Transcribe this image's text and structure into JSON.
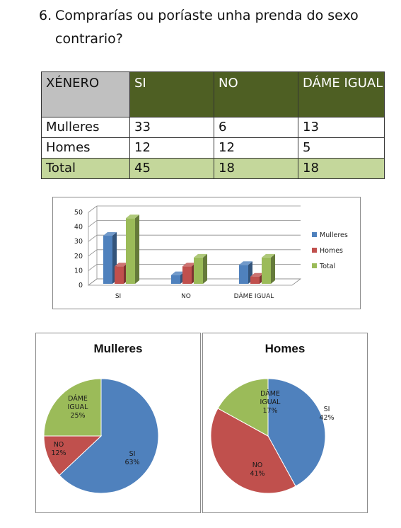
{
  "question": {
    "number": "6.",
    "text": "Comprarías ou poríaste unha prenda do sexo contrario?"
  },
  "table": {
    "headers": [
      "XÉNERO",
      "SI",
      "NO",
      "DÁME IGUAL"
    ],
    "rows": [
      [
        "Mulleres",
        "33",
        "6",
        "13"
      ],
      [
        "Homes",
        "12",
        "12",
        "5"
      ],
      [
        "Total",
        "45",
        "18",
        "18"
      ]
    ]
  },
  "colors": {
    "header_bg": "#4e5f23",
    "total_bg": "#c4d79b",
    "mulleres": "#4f81bd",
    "homes": "#c0504d",
    "total": "#9bbb59"
  },
  "chart_data": [
    {
      "type": "bar",
      "categories": [
        "SI",
        "NO",
        "DÁME IGUAL"
      ],
      "series": [
        {
          "name": "Mulleres",
          "values": [
            33,
            6,
            13
          ]
        },
        {
          "name": "Homes",
          "values": [
            12,
            12,
            5
          ]
        },
        {
          "name": "Total",
          "values": [
            45,
            18,
            18
          ]
        }
      ],
      "ylim": [
        0,
        50
      ],
      "yticks": [
        0,
        10,
        20,
        30,
        40,
        50
      ],
      "grid": true,
      "legend": "right"
    },
    {
      "type": "pie",
      "title": "Mulleres",
      "labels": [
        "SI",
        "NO",
        "DÁME IGUAL"
      ],
      "values": [
        63,
        12,
        25
      ],
      "value_labels": [
        "63%",
        "12%",
        "25%"
      ]
    },
    {
      "type": "pie",
      "title": "Homes",
      "labels": [
        "SI",
        "NO",
        "DÁME IGUAL"
      ],
      "values": [
        42,
        41,
        17
      ],
      "value_labels": [
        "42%",
        "41%",
        "17%"
      ]
    }
  ]
}
